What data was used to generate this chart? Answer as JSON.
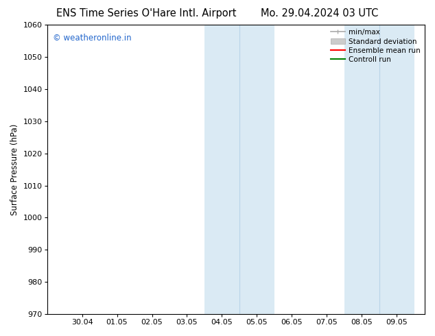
{
  "title_left": "ENS Time Series O'Hare Intl. Airport",
  "title_right": "Mo. 29.04.2024 03 UTC",
  "ylabel": "Surface Pressure (hPa)",
  "ylim": [
    970,
    1060
  ],
  "yticks": [
    970,
    980,
    990,
    1000,
    1010,
    1020,
    1030,
    1040,
    1050,
    1060
  ],
  "xtick_labels": [
    "30.04",
    "01.05",
    "02.05",
    "03.05",
    "04.05",
    "05.05",
    "06.05",
    "07.05",
    "08.05",
    "09.05"
  ],
  "xtick_positions": [
    1,
    2,
    3,
    4,
    5,
    6,
    7,
    8,
    9,
    10
  ],
  "xlim": [
    0.0,
    10.8
  ],
  "shaded_regions": [
    {
      "start": 4.5,
      "end": 5.5,
      "color": "#daeaf4"
    },
    {
      "start": 5.5,
      "end": 6.5,
      "color": "#daeaf4"
    },
    {
      "start": 8.5,
      "end": 9.5,
      "color": "#daeaf4"
    },
    {
      "start": 9.5,
      "end": 10.5,
      "color": "#daeaf4"
    }
  ],
  "divider_lines": [
    5.5,
    9.5
  ],
  "divider_color": "#b8d4e8",
  "watermark_text": "© weatheronline.in",
  "watermark_color": "#2266cc",
  "legend_items": [
    {
      "label": "min/max",
      "color": "#aaaaaa",
      "lw": 1.2
    },
    {
      "label": "Standard deviation",
      "color": "#cccccc",
      "lw": 7
    },
    {
      "label": "Ensemble mean run",
      "color": "red",
      "lw": 1.5
    },
    {
      "label": "Controll run",
      "color": "green",
      "lw": 1.5
    }
  ],
  "background_color": "#ffffff",
  "plot_bg_color": "#ffffff",
  "title_fontsize": 10.5,
  "axis_fontsize": 8.5,
  "tick_fontsize": 8,
  "watermark_fontsize": 8.5,
  "legend_fontsize": 7.5
}
